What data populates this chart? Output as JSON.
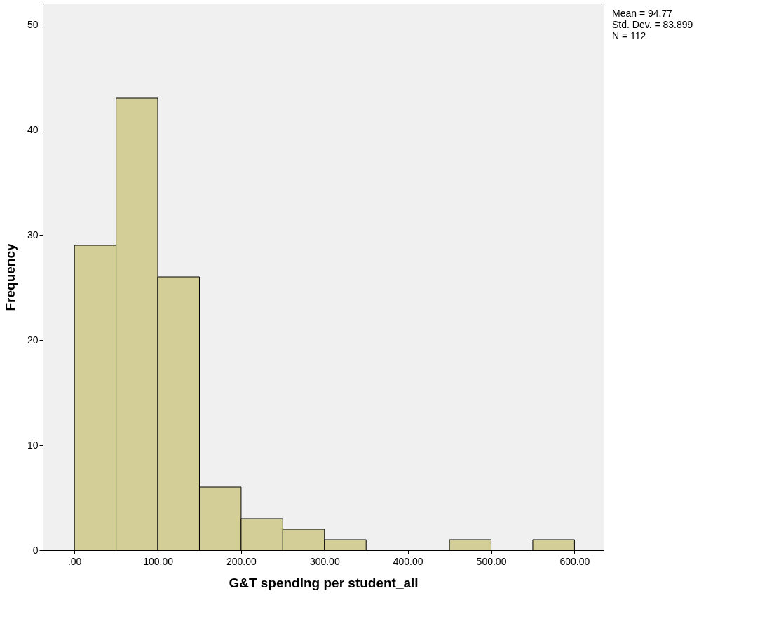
{
  "chart_data": {
    "type": "histogram",
    "xlabel": "G&T spending per student_all",
    "ylabel": "Frequency",
    "bins": [
      0,
      50,
      100,
      150,
      200,
      250,
      300,
      350,
      400,
      450,
      500,
      550,
      600
    ],
    "values": [
      29,
      43,
      26,
      6,
      3,
      2,
      1,
      0,
      0,
      1,
      0,
      1
    ],
    "color": "#d3ce97",
    "xlim": [
      -38,
      635
    ],
    "ylim": [
      0,
      52
    ],
    "xticks": [
      {
        "value": 0,
        "label": ".00"
      },
      {
        "value": 100,
        "label": "100.00"
      },
      {
        "value": 200,
        "label": "200.00"
      },
      {
        "value": 300,
        "label": "300.00"
      },
      {
        "value": 400,
        "label": "400.00"
      },
      {
        "value": 500,
        "label": "500.00"
      },
      {
        "value": 600,
        "label": "600.00"
      }
    ],
    "yticks": [
      0,
      10,
      20,
      30,
      40,
      50
    ],
    "grid": false,
    "annotations": [
      "Mean = 94.77",
      "Std. Dev. = 83.899",
      "N = 112"
    ]
  }
}
